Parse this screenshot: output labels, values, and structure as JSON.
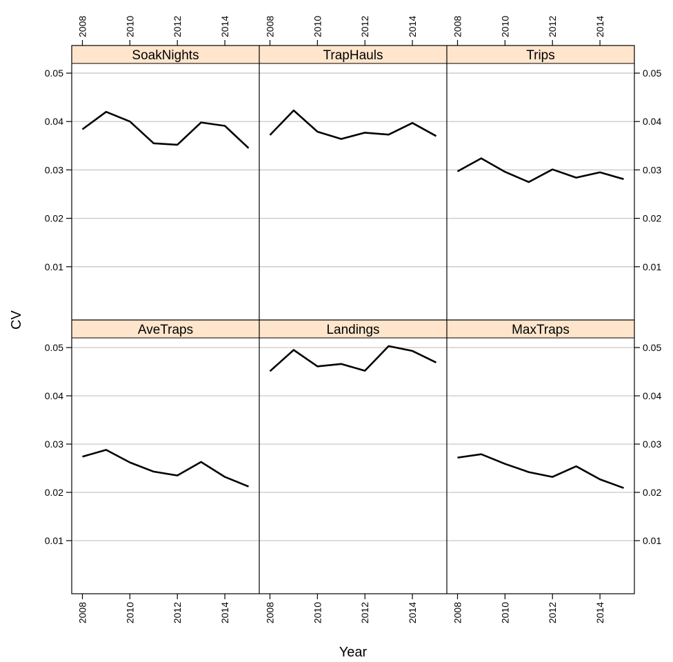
{
  "chart_data": {
    "type": "line",
    "xlabel": "Year",
    "ylabel": "CV",
    "x_ticks": [
      2008,
      2010,
      2012,
      2014
    ],
    "y_ticks": [
      0.01,
      0.02,
      0.03,
      0.04,
      0.05
    ],
    "y_tick_labels": [
      "0.01",
      "0.02",
      "0.03",
      "0.04",
      "0.05"
    ],
    "xlim": [
      2007.55,
      2015.45
    ],
    "ylim": [
      -0.001,
      0.052
    ],
    "grid": "horizontal",
    "strip_color": "#ffe5cc",
    "line_color": "#000000",
    "x": [
      2008,
      2009,
      2010,
      2011,
      2012,
      2013,
      2014,
      2015
    ],
    "panels": [
      {
        "name": "SoakNights",
        "values": [
          0.0384,
          0.042,
          0.04,
          0.0355,
          0.0352,
          0.0398,
          0.0391,
          0.0345
        ]
      },
      {
        "name": "TrapHauls",
        "values": [
          0.0372,
          0.0423,
          0.0379,
          0.0364,
          0.0377,
          0.0373,
          0.0397,
          0.037
        ]
      },
      {
        "name": "Trips",
        "values": [
          0.0297,
          0.0324,
          0.0296,
          0.0275,
          0.0301,
          0.0284,
          0.0295,
          0.0281
        ]
      },
      {
        "name": "AveTraps",
        "values": [
          0.0274,
          0.0288,
          0.0262,
          0.0243,
          0.0235,
          0.0263,
          0.0232,
          0.0212
        ]
      },
      {
        "name": "Landings",
        "values": [
          0.0451,
          0.0495,
          0.0461,
          0.0466,
          0.0452,
          0.0503,
          0.0493,
          0.0469
        ]
      },
      {
        "name": "MaxTraps",
        "values": [
          0.0272,
          0.0279,
          0.0259,
          0.0242,
          0.0232,
          0.0254,
          0.0227,
          0.0209
        ]
      }
    ]
  }
}
